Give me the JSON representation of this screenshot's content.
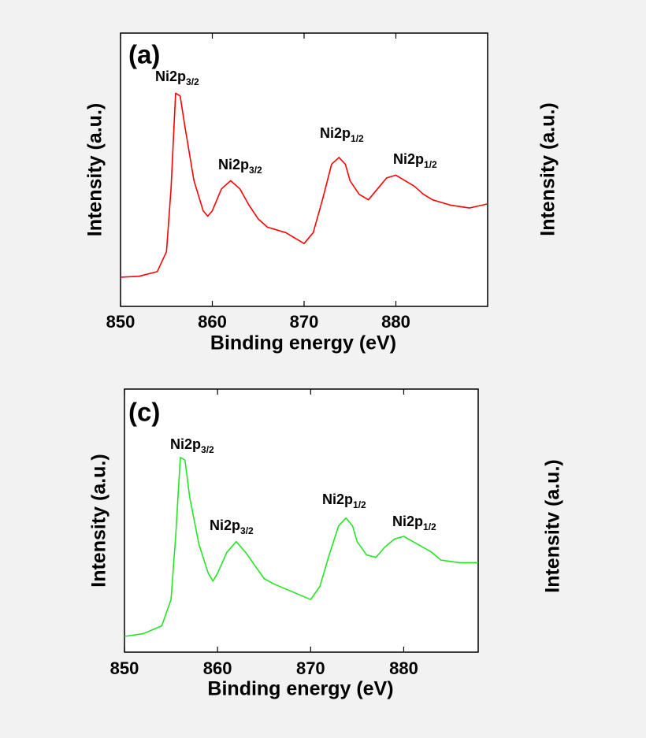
{
  "chart_data": [
    {
      "type": "line",
      "panel_label": "(a)",
      "x_label": "Binding energy (eV)",
      "y_label": "Intensity (a.u.)",
      "color": "#ff0000",
      "xlim": [
        850,
        890
      ],
      "ylim": [
        0,
        100
      ],
      "xticks": [
        850,
        860,
        870,
        880
      ],
      "x": [
        850,
        852,
        854,
        855,
        855.5,
        856,
        856.5,
        857,
        858,
        859,
        859.5,
        860,
        861,
        862,
        863,
        864,
        865,
        866,
        868,
        869,
        870,
        871,
        872,
        873,
        873.8,
        874.5,
        875,
        876,
        877,
        878,
        879,
        880,
        881,
        882,
        883,
        884,
        886,
        888,
        890
      ],
      "values": [
        10.7,
        11,
        12.7,
        20,
        43,
        78,
        77,
        66,
        46,
        35,
        33,
        35,
        43,
        46,
        43,
        37,
        32,
        29,
        27,
        25,
        23,
        27,
        39,
        52,
        54.5,
        52,
        46,
        41,
        39,
        43,
        47,
        48,
        46,
        44,
        41,
        39,
        37,
        36,
        37.5
      ],
      "annotations": [
        {
          "text": "Ni2p",
          "sub": "3/2"
        },
        {
          "text": "Ni2p",
          "sub": "3/2"
        },
        {
          "text": "Ni2p",
          "sub": "1/2"
        },
        {
          "text": "Ni2p",
          "sub": "1/2"
        }
      ]
    },
    {
      "type": "line",
      "panel_label": "(c)",
      "x_label": "Binding energy (eV)",
      "y_label": "Intensity (a.u.)",
      "color": "#22e622",
      "xlim": [
        850,
        888
      ],
      "ylim": [
        0,
        100
      ],
      "xticks": [
        850,
        860,
        870,
        880
      ],
      "x": [
        850,
        852,
        854,
        855,
        855.5,
        856,
        856.5,
        857,
        858,
        859,
        859.5,
        860,
        861,
        862,
        863,
        864,
        865,
        866,
        868,
        870,
        871,
        872,
        873,
        873.8,
        874.5,
        875,
        876,
        877,
        878,
        879,
        880,
        881,
        882,
        883,
        884,
        886,
        888
      ],
      "values": [
        6,
        7,
        10,
        20,
        44,
        74,
        73,
        59,
        41,
        30,
        27,
        30,
        38,
        42,
        38,
        33,
        28,
        26,
        23,
        20,
        25,
        37,
        48,
        51,
        48,
        42,
        37,
        36,
        40,
        43,
        44,
        42,
        40,
        38,
        35,
        34,
        34
      ],
      "annotations": [
        {
          "text": "Ni2p",
          "sub": "3/2"
        },
        {
          "text": "Ni2p",
          "sub": "3/2"
        },
        {
          "text": "Ni2p",
          "sub": "1/2"
        },
        {
          "text": "Ni2p",
          "sub": "1/2"
        }
      ]
    }
  ],
  "cropped_labels": [
    "Intensity (a.u.)",
    "Intensitv (a.u.)"
  ]
}
